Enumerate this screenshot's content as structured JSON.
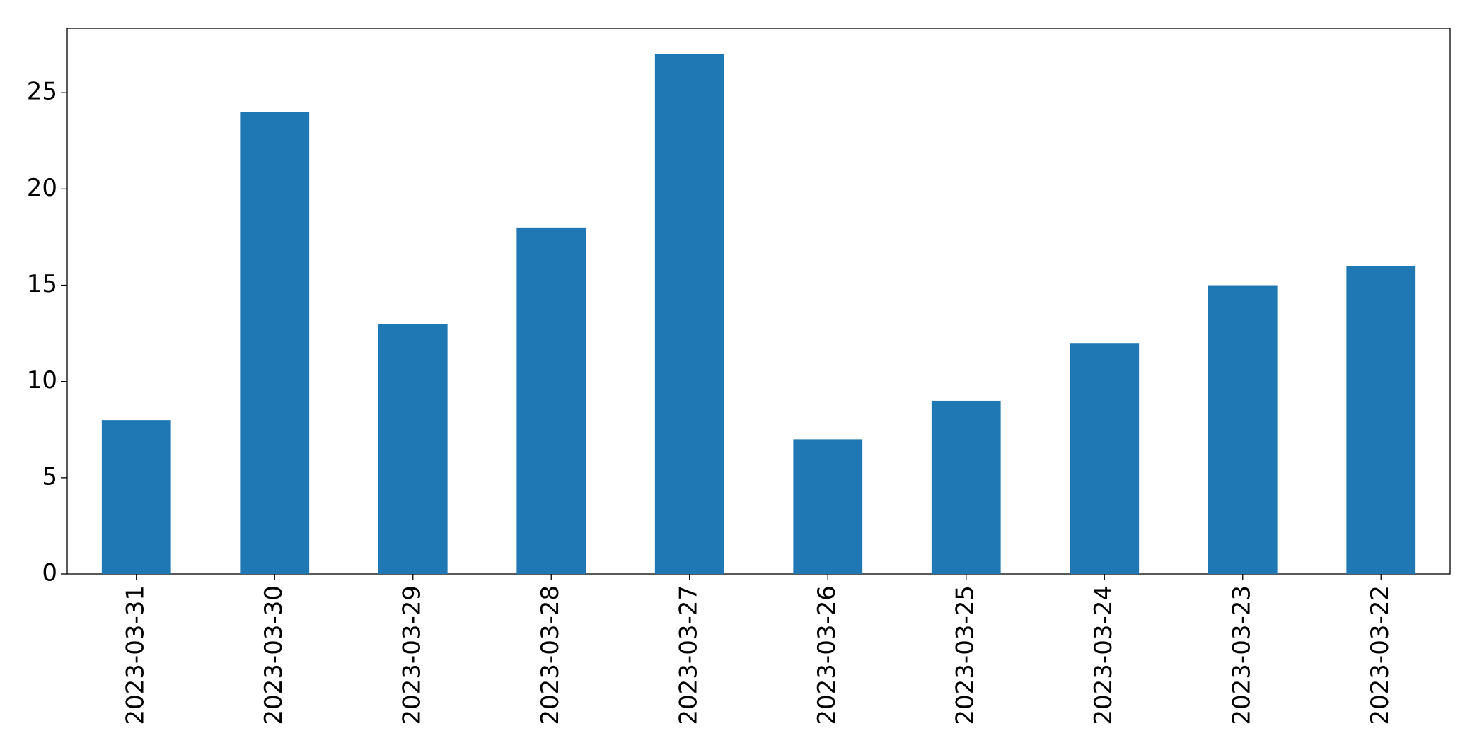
{
  "chart_data": {
    "type": "bar",
    "categories": [
      "2023-03-31",
      "2023-03-30",
      "2023-03-29",
      "2023-03-28",
      "2023-03-27",
      "2023-03-26",
      "2023-03-25",
      "2023-03-24",
      "2023-03-23",
      "2023-03-22"
    ],
    "values": [
      8,
      24,
      13,
      18,
      27,
      7,
      9,
      12,
      15,
      16
    ],
    "color": "#1f77b4",
    "ylim": [
      0,
      28.35
    ],
    "yticks": [
      0,
      5,
      10,
      15,
      20,
      25
    ],
    "grid": false
  }
}
